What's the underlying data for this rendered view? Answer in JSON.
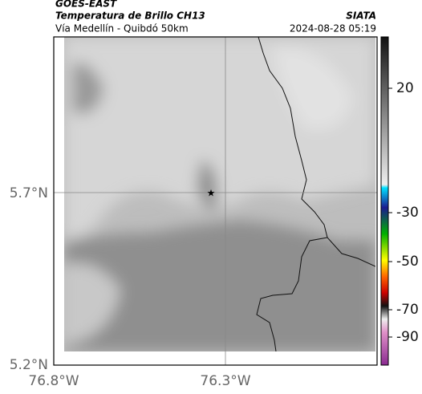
{
  "header": {
    "product": "GOES-EAST",
    "title": "Temperatura de Brillo CH13",
    "subtitle": "Vía Medellín - Quibdó 50km",
    "source": "SIATA",
    "datetime": "2024-08-28 05:19"
  },
  "map": {
    "lat_labels": [
      "5.7°N",
      "5.2°N"
    ],
    "lon_labels": [
      "76.8°W",
      "76.3°W"
    ]
  },
  "colorbar": {
    "labels": [
      "20",
      "-30",
      "-50",
      "-70",
      "-90"
    ]
  }
}
